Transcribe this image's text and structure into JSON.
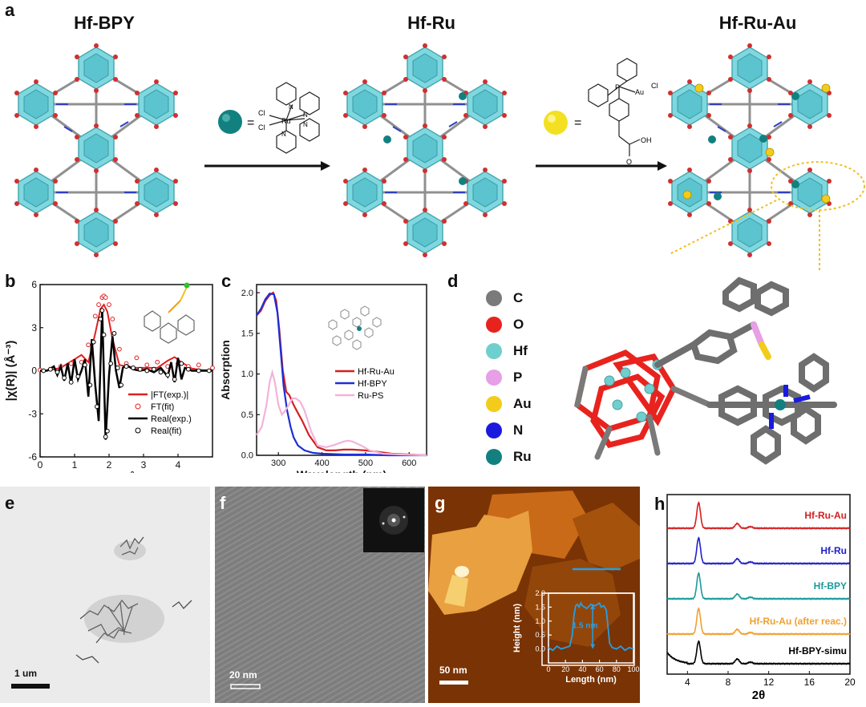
{
  "panel_a": {
    "label": "a",
    "titles": [
      "Hf-BPY",
      "Hf-Ru",
      "Hf-Ru-Au"
    ],
    "eq_sign": "=",
    "ru_complex_atoms": {
      "cl1": "Cl",
      "cl2": "Cl",
      "ru": "Ru",
      "n1": "N",
      "n2": "N",
      "n3": "N",
      "n4": "N"
    },
    "au_complex_atoms": {
      "p": "P",
      "au": "Au",
      "cl": "Cl",
      "oh": "OH",
      "o": "O"
    }
  },
  "panel_b": {
    "label": "b"
  },
  "panel_c": {
    "label": "c"
  },
  "panel_d": {
    "label": "d",
    "legend": [
      {
        "name": "C",
        "color": "#7a7a7a"
      },
      {
        "name": "O",
        "color": "#e8231e"
      },
      {
        "name": "Hf",
        "color": "#6fcfcf"
      },
      {
        "name": "P",
        "color": "#e79fe6"
      },
      {
        "name": "Au",
        "color": "#f3cc1b"
      },
      {
        "name": "N",
        "color": "#1a1adf"
      },
      {
        "name": "Ru",
        "color": "#138080"
      }
    ]
  },
  "panel_e": {
    "label": "e",
    "scale_bar": "1 um"
  },
  "panel_f": {
    "label": "f",
    "scale_bar": "20 nm"
  },
  "panel_g": {
    "label": "g",
    "scale_bar": "50 nm"
  },
  "panel_h": {
    "label": "h"
  },
  "chart_data": [
    {
      "id": "b",
      "type": "line",
      "xlabel": "R (Å)",
      "ylabel": "|χ(R)| (Å⁻³)",
      "xlim": [
        0,
        5
      ],
      "ylim": [
        -6,
        6
      ],
      "xticks": [
        "0",
        "1",
        "2",
        "3",
        "4"
      ],
      "yticks": [
        "6",
        "3",
        "0",
        "-3",
        "-6"
      ],
      "legend_position": "bottom-right",
      "series": [
        {
          "name": "|FT(exp.)|",
          "color": "#e02020",
          "style": "line",
          "x": [
            0.0,
            0.3,
            0.6,
            0.8,
            1.0,
            1.2,
            1.4,
            1.6,
            1.75,
            1.85,
            1.95,
            2.1,
            2.3,
            2.5,
            2.8,
            3.1,
            3.4,
            3.7,
            3.9,
            4.1,
            4.4,
            4.7,
            5.0
          ],
          "y": [
            0.0,
            0.05,
            0.2,
            0.5,
            0.8,
            1.1,
            0.6,
            2.6,
            4.3,
            4.6,
            4.1,
            2.2,
            0.4,
            0.3,
            0.2,
            0.2,
            0.2,
            0.7,
            0.95,
            0.6,
            0.15,
            0.05,
            0.02
          ]
        },
        {
          "name": "FT(fit)",
          "color": "#e02020",
          "style": "open-circle",
          "x": [
            0.0,
            0.3,
            0.6,
            0.9,
            1.2,
            1.4,
            1.6,
            1.7,
            1.8,
            1.85,
            1.9,
            2.0,
            2.1,
            2.3,
            2.5,
            2.8,
            3.1,
            3.4,
            3.7,
            4.0,
            4.3,
            4.6,
            5.0
          ],
          "y": [
            0.05,
            0.1,
            0.3,
            0.5,
            0.6,
            1.8,
            3.8,
            4.6,
            5.1,
            5.2,
            5.1,
            4.6,
            3.6,
            1.5,
            0.5,
            0.9,
            0.4,
            0.6,
            0.3,
            0.5,
            0.3,
            0.4,
            0.2
          ]
        },
        {
          "name": "Real(exp.)",
          "color": "#000000",
          "style": "line",
          "x": [
            0.0,
            0.2,
            0.4,
            0.5,
            0.6,
            0.7,
            0.8,
            0.9,
            1.0,
            1.1,
            1.2,
            1.3,
            1.4,
            1.5,
            1.6,
            1.7,
            1.8,
            1.9,
            2.0,
            2.1,
            2.2,
            2.3,
            2.4,
            2.5,
            2.7,
            2.9,
            3.1,
            3.3,
            3.5,
            3.7,
            3.8,
            3.9,
            4.0,
            4.1,
            4.2,
            4.4,
            4.7,
            5.0
          ],
          "y": [
            0.0,
            0.0,
            0.3,
            -0.3,
            0.3,
            -0.7,
            0.5,
            -0.9,
            0.8,
            -0.6,
            0.0,
            0.8,
            -1.8,
            2.2,
            -1.0,
            -3.5,
            4.3,
            -4.8,
            -0.3,
            2.4,
            0.0,
            -1.2,
            0.2,
            0.4,
            0.1,
            0.0,
            0.1,
            -0.1,
            0.2,
            -0.4,
            0.6,
            -0.8,
            0.9,
            -0.6,
            0.2,
            0.0,
            0.0,
            0.0
          ]
        },
        {
          "name": "Real(fit)",
          "color": "#000000",
          "style": "open-circle",
          "x": [
            0.1,
            0.3,
            0.5,
            0.7,
            0.9,
            1.1,
            1.3,
            1.45,
            1.55,
            1.65,
            1.75,
            1.8,
            1.85,
            1.9,
            1.95,
            2.05,
            2.15,
            2.25,
            2.35,
            2.5,
            2.7,
            2.9,
            3.1,
            3.3,
            3.5,
            3.7,
            3.9,
            4.1,
            4.3,
            4.6,
            4.9
          ],
          "y": [
            0.0,
            0.1,
            -0.1,
            -0.5,
            -0.8,
            -0.4,
            0.4,
            -1.0,
            2.0,
            -2.5,
            3.6,
            4.2,
            2.5,
            -4.6,
            -4.2,
            0.5,
            2.6,
            0.2,
            -1.0,
            0.3,
            0.2,
            0.1,
            0.0,
            0.1,
            -0.1,
            -0.3,
            -0.6,
            0.5,
            0.1,
            0.0,
            0.0
          ]
        }
      ]
    },
    {
      "id": "c",
      "type": "line",
      "xlabel": "Wavelength (nm)",
      "ylabel": "Absorption",
      "xlim": [
        250,
        640
      ],
      "ylim": [
        0,
        2.1
      ],
      "xticks": [
        "300",
        "400",
        "500",
        "600"
      ],
      "yticks": [
        "0.0",
        "0.5",
        "1.0",
        "1.5",
        "2.0"
      ],
      "legend_position": "center-right",
      "series": [
        {
          "name": "Hf-Ru-Au",
          "color": "#d42020",
          "x": [
            250,
            260,
            270,
            280,
            288,
            295,
            302,
            310,
            318,
            325,
            335,
            345,
            355,
            370,
            390,
            410,
            430,
            450,
            470,
            500,
            530,
            560,
            600,
            640
          ],
          "y": [
            1.72,
            1.78,
            1.9,
            1.97,
            2.0,
            1.9,
            1.55,
            1.05,
            0.78,
            0.74,
            0.62,
            0.52,
            0.42,
            0.25,
            0.1,
            0.06,
            0.06,
            0.07,
            0.07,
            0.06,
            0.04,
            0.02,
            0.01,
            0.0
          ]
        },
        {
          "name": "Hf-BPY",
          "color": "#1e2ed6",
          "x": [
            250,
            260,
            270,
            280,
            290,
            298,
            305,
            312,
            320,
            328,
            335,
            345,
            360,
            380,
            400,
            450,
            500,
            550,
            600,
            640
          ],
          "y": [
            1.72,
            1.8,
            1.92,
            1.99,
            1.98,
            1.75,
            1.3,
            0.85,
            0.55,
            0.35,
            0.22,
            0.12,
            0.06,
            0.03,
            0.02,
            0.01,
            0.01,
            0.0,
            0.0,
            0.0
          ]
        },
        {
          "name": "Ru-PS",
          "color": "#f2b3da",
          "x": [
            250,
            262,
            272,
            280,
            286,
            292,
            300,
            308,
            316,
            324,
            332,
            340,
            350,
            360,
            375,
            390,
            410,
            430,
            450,
            460,
            470,
            490,
            510,
            540,
            580,
            640
          ],
          "y": [
            0.25,
            0.35,
            0.6,
            0.9,
            1.02,
            0.9,
            0.62,
            0.5,
            0.55,
            0.62,
            0.7,
            0.7,
            0.66,
            0.55,
            0.3,
            0.12,
            0.1,
            0.13,
            0.17,
            0.18,
            0.17,
            0.12,
            0.06,
            0.02,
            0.01,
            0.0
          ]
        }
      ]
    },
    {
      "id": "g_inset",
      "type": "line",
      "xlabel": "Length (nm)",
      "ylabel": "Height (nm)",
      "annotation": "1.5 nm",
      "xlim": [
        0,
        100
      ],
      "ylim": [
        -0.5,
        2.0
      ],
      "xticks": [
        "0",
        "20",
        "40",
        "60",
        "80",
        "100"
      ],
      "yticks": [
        "0.0",
        "0.5",
        "1.0",
        "1.5",
        "2.0"
      ],
      "series": [
        {
          "color": "#2a9de0",
          "x": [
            0,
            5,
            10,
            15,
            20,
            25,
            28,
            30,
            32,
            34,
            36,
            38,
            40,
            45,
            50,
            55,
            60,
            62,
            65,
            68,
            70,
            72,
            75,
            80,
            85,
            90,
            95,
            100
          ],
          "y": [
            0.05,
            -0.05,
            0.1,
            0.0,
            0.05,
            0.1,
            0.5,
            1.2,
            1.55,
            1.6,
            1.5,
            1.65,
            1.55,
            1.45,
            1.6,
            1.55,
            1.65,
            1.5,
            1.55,
            1.4,
            0.8,
            0.2,
            0.05,
            0.0,
            0.1,
            -0.05,
            0.05,
            0.0
          ]
        }
      ]
    },
    {
      "id": "h",
      "type": "line",
      "xlabel": "2θ",
      "xlim": [
        2,
        20
      ],
      "xticks": [
        "4",
        "8",
        "12",
        "16",
        "20"
      ],
      "series": [
        {
          "name": "Hf-Ru-Au",
          "color": "#d42020",
          "offset": 4
        },
        {
          "name": "Hf-Ru",
          "color": "#2121c8",
          "offset": 3
        },
        {
          "name": "Hf-BPY",
          "color": "#1c9a9a",
          "offset": 2
        },
        {
          "name": "Hf-Ru-Au (after reac.)",
          "color": "#f0a030",
          "offset": 1
        },
        {
          "name": "Hf-BPY-simu",
          "color": "#000000",
          "offset": 0
        }
      ]
    }
  ]
}
